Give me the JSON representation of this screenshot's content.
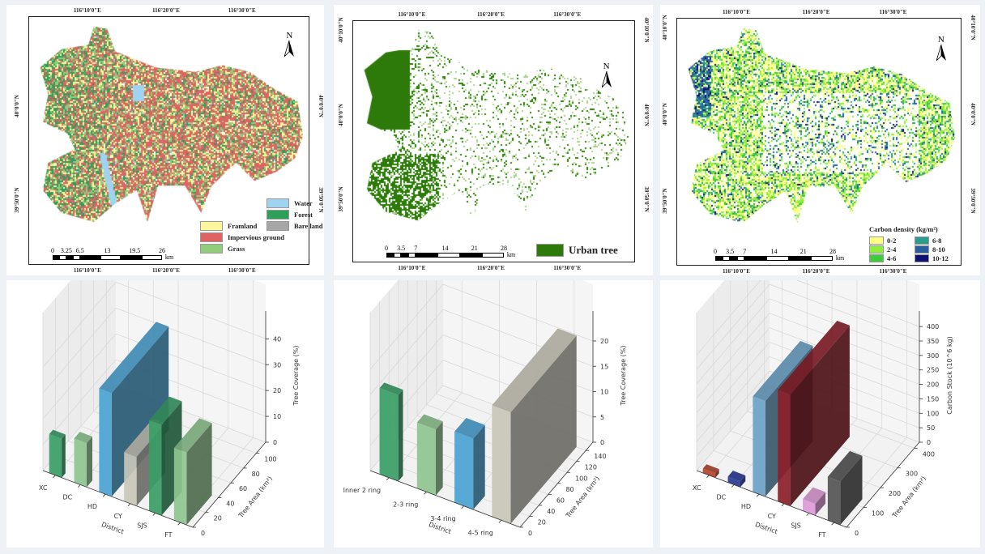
{
  "maps": [
    {
      "lon_labels": [
        "116°10'0\"E",
        "116°20'0\"E",
        "116°30'0\"E"
      ],
      "lat_labels": [
        "40°0'0\"N",
        "39°50'0\"N"
      ],
      "north": "N",
      "scale": {
        "ticks": [
          "0",
          "3.25",
          "6.5",
          "13",
          "19.5",
          "26"
        ],
        "unit": "km"
      },
      "legend": [
        {
          "label": "Water",
          "color": "#9fd3f0"
        },
        {
          "label": "Forest",
          "color": "#2e9e5b"
        },
        {
          "label": "Bare land",
          "color": "#a6a6a6"
        },
        {
          "label": "Framland",
          "color": "#fff59d"
        },
        {
          "label": "Impervious ground",
          "color": "#e06363"
        },
        {
          "label": "Grass",
          "color": "#93cc7a"
        }
      ]
    },
    {
      "lon_labels": [
        "116°10'0\"E",
        "116°20'0\"E",
        "116°30'0\"E"
      ],
      "lat_labels": [
        "40°10'0\"N",
        "40°0'0\"N",
        "39°50'0\"N"
      ],
      "north": "N",
      "scale": {
        "ticks": [
          "0",
          "3.5",
          "7",
          "14",
          "21",
          "28"
        ],
        "unit": "km"
      },
      "legend": [
        {
          "label": "Urban tree",
          "color": "#2d7a0a"
        }
      ]
    },
    {
      "lon_labels": [
        "116°10'0\"E",
        "116°20'0\"E",
        "116°30'0\"E"
      ],
      "lat_labels": [
        "40°10'0\"N",
        "40°0'0\"N",
        "39°50'0\"N"
      ],
      "north": "N",
      "scale": {
        "ticks": [
          "0",
          "3.5",
          "7",
          "14",
          "21",
          "28"
        ],
        "unit": "km"
      },
      "legend_title": "Carbon density (kg/m²)",
      "legend": [
        {
          "label": "0-2",
          "color": "#ffff80"
        },
        {
          "label": "2-4",
          "color": "#90ee40"
        },
        {
          "label": "4-6",
          "color": "#3ccc3c"
        },
        {
          "label": "6-8",
          "color": "#2a9d8f"
        },
        {
          "label": "8-10",
          "color": "#2a5f9e"
        },
        {
          "label": "10-12",
          "color": "#0d1173"
        }
      ]
    }
  ],
  "chart_data": [
    {
      "type": "bar3d",
      "categories": [
        "XC",
        "DC",
        "HD",
        "CY",
        "SJS",
        "FT"
      ],
      "values": [
        15,
        17,
        40,
        19,
        35,
        28
      ],
      "depth_values": [
        6,
        9,
        90,
        45,
        32,
        40
      ],
      "colors": [
        "#3a9e66",
        "#8fc48f",
        "#4aa3d4",
        "#c9c7b9",
        "#3a9e66",
        "#8fc48f"
      ],
      "xlabel": "District",
      "ylabel": "Tree Area (km²)",
      "zlabel": "Tree Coverage (%)",
      "ylim": [
        0,
        115
      ],
      "zlim": [
        0,
        47
      ],
      "yticks": [
        "0",
        "20",
        "40",
        "60",
        "80",
        "100"
      ],
      "ytick_values": [
        0,
        20,
        40,
        60,
        80,
        100
      ],
      "zticks": [
        "0",
        "10",
        "20",
        "30",
        "40"
      ],
      "ztick_values": [
        0,
        10,
        20,
        30,
        40
      ],
      "grid": true
    },
    {
      "type": "bar3d",
      "categories": [
        "Inner 2 ring",
        "2-3 ring",
        "3-4 ring",
        "4-5 ring"
      ],
      "values": [
        17,
        13,
        14,
        22
      ],
      "depth_values": [
        10,
        15,
        25,
        140
      ],
      "colors": [
        "#3a9e66",
        "#8fc48f",
        "#4aa3d4",
        "#c9c7b9"
      ],
      "xlabel": "District",
      "ylabel": "Tree Area (km²)",
      "zlabel": "Tree Coverage (%)",
      "ylim": [
        0,
        155
      ],
      "zlim": [
        0,
        24
      ],
      "yticks": [
        "0",
        "20",
        "40",
        "60",
        "80",
        "100",
        "120",
        "140"
      ],
      "ytick_values": [
        0,
        20,
        40,
        60,
        80,
        100,
        120,
        140
      ],
      "zticks": [
        "0",
        "5",
        "10",
        "15",
        "20"
      ],
      "ztick_values": [
        0,
        5,
        10,
        15,
        20
      ],
      "grid": true
    },
    {
      "type": "bar3d",
      "categories": [
        "XC",
        "DC",
        "HD",
        "CY",
        "SJS",
        "FT"
      ],
      "values": [
        15,
        20,
        330,
        385,
        40,
        150
      ],
      "depth_values": [
        20,
        30,
        280,
        350,
        60,
        130
      ],
      "colors": [
        "#b5432e",
        "#2a3a96",
        "#6aa2c8",
        "#8c1f2a",
        "#e09ad8",
        "#555555"
      ],
      "xlabel": "District",
      "ylabel": "Tree Area (km²)",
      "zlabel": "Carbon Stock (10^6 kg)",
      "ylim": [
        0,
        430
      ],
      "zlim": [
        0,
        420
      ],
      "yticks": [
        "0",
        "100",
        "200",
        "300",
        "400"
      ],
      "ytick_values": [
        0,
        100,
        200,
        300,
        400
      ],
      "zticks": [
        "0",
        "50",
        "100",
        "150",
        "200",
        "250",
        "300",
        "350",
        "400"
      ],
      "ztick_values": [
        0,
        50,
        100,
        150,
        200,
        250,
        300,
        350,
        400
      ],
      "grid": true
    }
  ]
}
